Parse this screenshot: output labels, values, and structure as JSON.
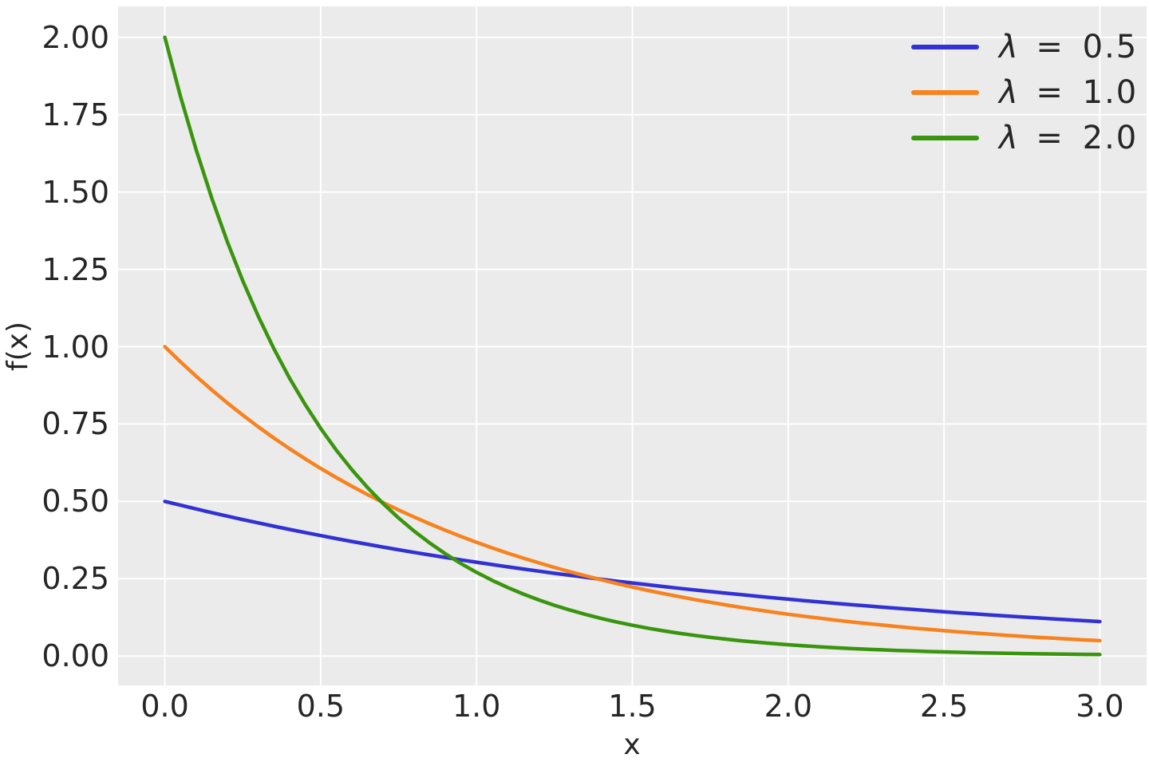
{
  "chart_data": {
    "type": "line",
    "title": "",
    "xlabel": "x",
    "ylabel": "f(x)",
    "xlim": [
      -0.15,
      3.15
    ],
    "ylim": [
      -0.0948,
      2.0998
    ],
    "xticks": [
      0.0,
      0.5,
      1.0,
      1.5,
      2.0,
      2.5,
      3.0
    ],
    "xtick_labels": [
      "0.0",
      "0.5",
      "1.0",
      "1.5",
      "2.0",
      "2.5",
      "3.0"
    ],
    "yticks": [
      0.0,
      0.25,
      0.5,
      0.75,
      1.0,
      1.25,
      1.5,
      1.75,
      2.0
    ],
    "ytick_labels": [
      "0.00",
      "0.25",
      "0.50",
      "0.75",
      "1.00",
      "1.25",
      "1.50",
      "1.75",
      "2.00"
    ],
    "grid": true,
    "legend_position": "upper right",
    "colors": {
      "figure_background": "#ffffff",
      "plot_background": "#ebebeb",
      "grid": "#ffffff",
      "text": "#262626"
    },
    "x": [
      0,
      0.05,
      0.1,
      0.15,
      0.2,
      0.25,
      0.3,
      0.35,
      0.4,
      0.45,
      0.5,
      0.55,
      0.6,
      0.65,
      0.7,
      0.75,
      0.8,
      0.85,
      0.9,
      0.95,
      1.0,
      1.05,
      1.1,
      1.15,
      1.2,
      1.25,
      1.3,
      1.35,
      1.4,
      1.45,
      1.5,
      1.55,
      1.6,
      1.65,
      1.7,
      1.75,
      1.8,
      1.85,
      1.9,
      1.95,
      2.0,
      2.05,
      2.1,
      2.15,
      2.2,
      2.25,
      2.3,
      2.35,
      2.4,
      2.45,
      2.5,
      2.55,
      2.6,
      2.65,
      2.7,
      2.75,
      2.8,
      2.85,
      2.9,
      2.95,
      3.0
    ],
    "series": [
      {
        "name": "λ = 0.5",
        "lambda": 0.5,
        "color": "#3231d4",
        "y": [
          0.5,
          0.4877,
          0.4756,
          0.4639,
          0.4524,
          0.4412,
          0.4304,
          0.4197,
          0.4094,
          0.3993,
          0.3894,
          0.3798,
          0.3704,
          0.3613,
          0.3523,
          0.3436,
          0.3352,
          0.3269,
          0.3188,
          0.3109,
          0.3033,
          0.2958,
          0.2885,
          0.2814,
          0.2744,
          0.2676,
          0.261,
          0.2546,
          0.2483,
          0.2422,
          0.2362,
          0.2304,
          0.2247,
          0.2191,
          0.2137,
          0.2084,
          0.2033,
          0.1983,
          0.1934,
          0.1886,
          0.1839,
          0.1794,
          0.175,
          0.1706,
          0.1664,
          0.1623,
          0.1583,
          0.1544,
          0.1506,
          0.1469,
          0.1433,
          0.1397,
          0.1363,
          0.1329,
          0.1296,
          0.1264,
          0.1233,
          0.1203,
          0.1173,
          0.1144,
          0.1116
        ]
      },
      {
        "name": "λ = 1.0",
        "lambda": 1.0,
        "color": "#f7821e",
        "y": [
          1.0,
          0.9512,
          0.9048,
          0.8607,
          0.8187,
          0.7788,
          0.7408,
          0.7047,
          0.6703,
          0.6376,
          0.6065,
          0.5769,
          0.5488,
          0.522,
          0.4966,
          0.4724,
          0.4493,
          0.4274,
          0.4066,
          0.3867,
          0.3679,
          0.3499,
          0.3329,
          0.3166,
          0.3012,
          0.2865,
          0.2725,
          0.2592,
          0.2466,
          0.2346,
          0.2231,
          0.2122,
          0.2019,
          0.1921,
          0.1827,
          0.1738,
          0.1653,
          0.1572,
          0.1496,
          0.1423,
          0.1353,
          0.1287,
          0.1225,
          0.1165,
          0.1108,
          0.1054,
          0.1003,
          0.0954,
          0.0907,
          0.0863,
          0.0821,
          0.0781,
          0.0743,
          0.0707,
          0.0672,
          0.0639,
          0.0608,
          0.0578,
          0.055,
          0.0523,
          0.0498
        ]
      },
      {
        "name": "λ = 2.0",
        "lambda": 2.0,
        "color": "#3a950e",
        "y": [
          2.0,
          1.8097,
          1.6375,
          1.4816,
          1.3406,
          1.2131,
          1.0976,
          0.9932,
          0.8987,
          0.8131,
          0.7358,
          0.6657,
          0.6024,
          0.5451,
          0.4932,
          0.4463,
          0.4038,
          0.3654,
          0.3306,
          0.2991,
          0.2707,
          0.2449,
          0.2216,
          0.2005,
          0.1814,
          0.1642,
          0.1486,
          0.1344,
          0.1216,
          0.11,
          0.0996,
          0.0901,
          0.0815,
          0.0738,
          0.0668,
          0.0604,
          0.0547,
          0.0494,
          0.0447,
          0.0405,
          0.0366,
          0.0331,
          0.03,
          0.0271,
          0.0245,
          0.0222,
          0.0201,
          0.0182,
          0.0165,
          0.0149,
          0.0135,
          0.0122,
          0.011,
          0.01,
          0.009,
          0.0082,
          0.0074,
          0.0067,
          0.0061,
          0.0055,
          0.005
        ]
      }
    ]
  }
}
